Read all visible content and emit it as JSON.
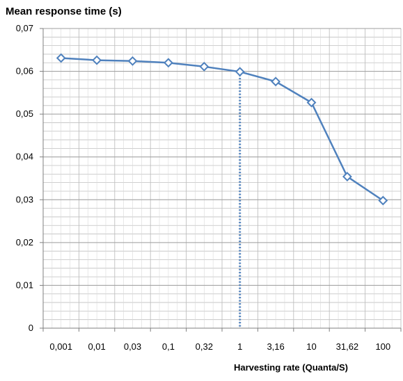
{
  "chart_data": {
    "type": "line",
    "title": "",
    "ylabel": "Mean response time (s)",
    "xlabel": "Harvesting rate (Quanta/S)",
    "categories": [
      "0,001",
      "0,01",
      "0,03",
      "0,1",
      "0,32",
      "1",
      "3,16",
      "10",
      "31,62",
      "100"
    ],
    "series": [
      {
        "values": [
          0.0631,
          0.0626,
          0.0624,
          0.062,
          0.0611,
          0.0599,
          0.0576,
          0.0527,
          0.0354,
          0.0298
        ]
      }
    ],
    "ylim": [
      0,
      0.07
    ],
    "yticks": [
      0,
      0.01,
      0.02,
      0.03,
      0.04,
      0.05,
      0.06,
      0.07
    ],
    "ytick_labels": [
      "0",
      "0,01",
      "0,02",
      "0,03",
      "0,04",
      "0,05",
      "0,06",
      "0,07"
    ],
    "grid": true,
    "reference_line": {
      "category": "1",
      "style": "dotted"
    },
    "colors": {
      "series": "#4f81bd",
      "grid": "#bfbfbf",
      "axis": "#7f7f7f"
    }
  }
}
